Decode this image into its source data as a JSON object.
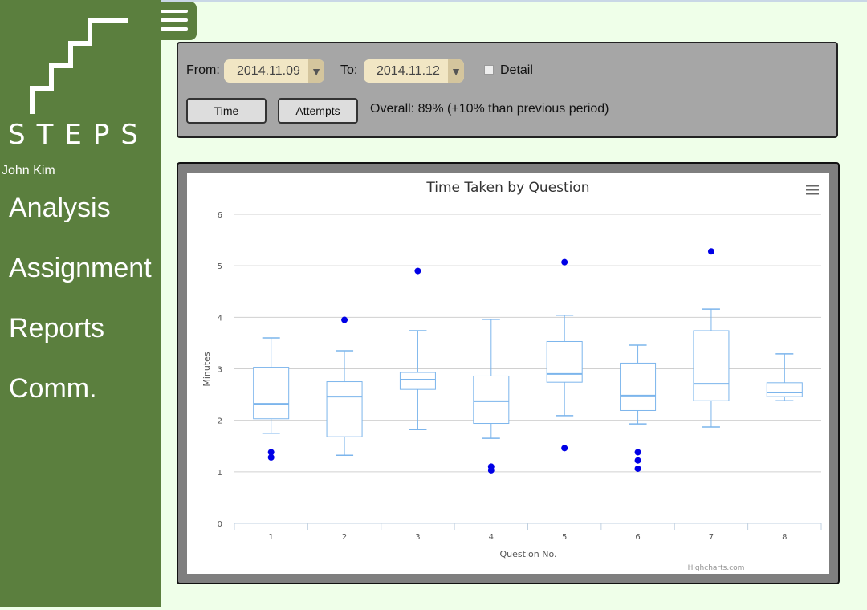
{
  "app": {
    "logo_text": "STEPS",
    "user_name": "John Kim"
  },
  "sidebar": {
    "items": [
      {
        "label": "Analysis"
      },
      {
        "label": "Assignment"
      },
      {
        "label": "Reports"
      },
      {
        "label": "Comm."
      }
    ]
  },
  "filters": {
    "from_label": "From:",
    "from_value": "2014.11.09",
    "to_label": "To:",
    "to_value": "2014.11.12",
    "detail_label": "Detail",
    "detail_checked": false,
    "time_button": "Time",
    "attempts_button": "Attempts",
    "overall_text": "Overall: 89% (+10% than previous period)"
  },
  "chart_data": {
    "type": "boxplot",
    "title": "Time Taken by Question",
    "xlabel": "Question No.",
    "ylabel": "Minutes",
    "ylim": [
      0,
      6
    ],
    "y_ticks": [
      0,
      1,
      2,
      3,
      4,
      5,
      6
    ],
    "categories": [
      "1",
      "2",
      "3",
      "4",
      "5",
      "6",
      "7",
      "8"
    ],
    "boxes": [
      {
        "low": 1.75,
        "q1": 2.03,
        "median": 2.32,
        "q3": 3.03,
        "high": 3.6
      },
      {
        "low": 1.32,
        "q1": 1.68,
        "median": 2.46,
        "q3": 2.75,
        "high": 3.35
      },
      {
        "low": 1.82,
        "q1": 2.6,
        "median": 2.79,
        "q3": 2.93,
        "high": 3.74
      },
      {
        "low": 1.65,
        "q1": 1.94,
        "median": 2.37,
        "q3": 2.86,
        "high": 3.96
      },
      {
        "low": 2.09,
        "q1": 2.74,
        "median": 2.9,
        "q3": 3.53,
        "high": 4.04
      },
      {
        "low": 1.93,
        "q1": 2.19,
        "median": 2.48,
        "q3": 3.11,
        "high": 3.46
      },
      {
        "low": 1.87,
        "q1": 2.38,
        "median": 2.71,
        "q3": 3.74,
        "high": 4.16
      },
      {
        "low": 2.38,
        "q1": 2.46,
        "median": 2.54,
        "q3": 2.73,
        "high": 3.29
      }
    ],
    "outliers": [
      {
        "x": "1",
        "y": 1.38
      },
      {
        "x": "1",
        "y": 1.28
      },
      {
        "x": "2",
        "y": 3.95
      },
      {
        "x": "3",
        "y": 4.9
      },
      {
        "x": "4",
        "y": 1.1
      },
      {
        "x": "4",
        "y": 1.03
      },
      {
        "x": "5",
        "y": 5.07
      },
      {
        "x": "5",
        "y": 1.46
      },
      {
        "x": "6",
        "y": 1.38
      },
      {
        "x": "6",
        "y": 1.22
      },
      {
        "x": "6",
        "y": 1.06
      },
      {
        "x": "7",
        "y": 5.28
      }
    ],
    "credit": "Highcharts.com",
    "grid": true,
    "legend": "none",
    "box_color": "#7cb5ec",
    "outlier_color": "#0000e6"
  }
}
